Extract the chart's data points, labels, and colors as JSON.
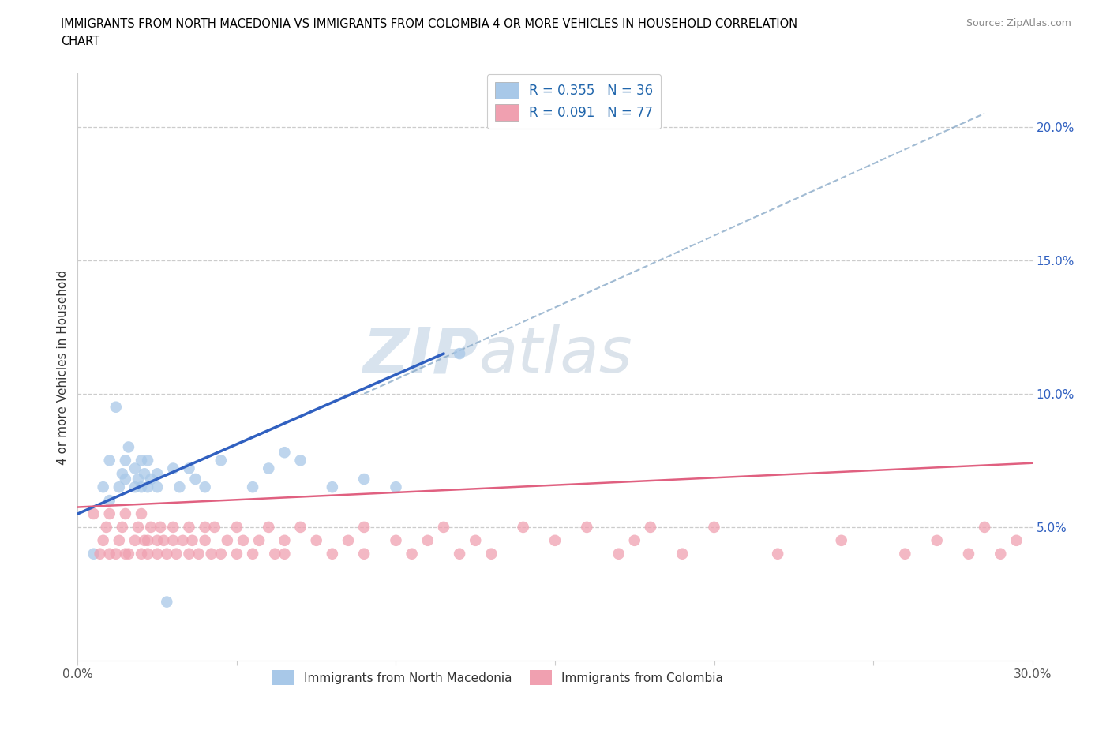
{
  "title_line1": "IMMIGRANTS FROM NORTH MACEDONIA VS IMMIGRANTS FROM COLOMBIA 4 OR MORE VEHICLES IN HOUSEHOLD CORRELATION",
  "title_line2": "CHART",
  "source": "Source: ZipAtlas.com",
  "ylabel": "4 or more Vehicles in Household",
  "xlim": [
    0.0,
    0.3
  ],
  "ylim": [
    0.0,
    0.22
  ],
  "yticks_right": [
    0.05,
    0.1,
    0.15,
    0.2
  ],
  "ytick_right_labels": [
    "5.0%",
    "10.0%",
    "15.0%",
    "20.0%"
  ],
  "blue_color": "#A8C8E8",
  "pink_color": "#F0A0B0",
  "blue_line_color": "#3060C0",
  "pink_line_color": "#E06080",
  "blue_R": 0.355,
  "blue_N": 36,
  "pink_R": 0.091,
  "pink_N": 77,
  "watermark_zip": "ZIP",
  "watermark_atlas": "atlas",
  "legend1": "Immigrants from North Macedonia",
  "legend2": "Immigrants from Colombia",
  "blue_scatter_x": [
    0.005,
    0.008,
    0.01,
    0.01,
    0.012,
    0.013,
    0.014,
    0.015,
    0.015,
    0.016,
    0.018,
    0.018,
    0.019,
    0.02,
    0.02,
    0.021,
    0.022,
    0.022,
    0.023,
    0.025,
    0.025,
    0.028,
    0.03,
    0.032,
    0.035,
    0.037,
    0.04,
    0.045,
    0.055,
    0.06,
    0.065,
    0.07,
    0.08,
    0.09,
    0.1,
    0.12
  ],
  "blue_scatter_y": [
    0.04,
    0.065,
    0.06,
    0.075,
    0.095,
    0.065,
    0.07,
    0.068,
    0.075,
    0.08,
    0.065,
    0.072,
    0.068,
    0.065,
    0.075,
    0.07,
    0.075,
    0.065,
    0.068,
    0.07,
    0.065,
    0.022,
    0.072,
    0.065,
    0.072,
    0.068,
    0.065,
    0.075,
    0.065,
    0.072,
    0.078,
    0.075,
    0.065,
    0.068,
    0.065,
    0.115
  ],
  "pink_scatter_x": [
    0.005,
    0.007,
    0.008,
    0.009,
    0.01,
    0.01,
    0.012,
    0.013,
    0.014,
    0.015,
    0.015,
    0.016,
    0.018,
    0.019,
    0.02,
    0.02,
    0.021,
    0.022,
    0.022,
    0.023,
    0.025,
    0.025,
    0.026,
    0.027,
    0.028,
    0.03,
    0.03,
    0.031,
    0.033,
    0.035,
    0.035,
    0.036,
    0.038,
    0.04,
    0.04,
    0.042,
    0.043,
    0.045,
    0.047,
    0.05,
    0.05,
    0.052,
    0.055,
    0.057,
    0.06,
    0.062,
    0.065,
    0.065,
    0.07,
    0.075,
    0.08,
    0.085,
    0.09,
    0.09,
    0.1,
    0.105,
    0.11,
    0.115,
    0.12,
    0.125,
    0.13,
    0.14,
    0.15,
    0.16,
    0.17,
    0.175,
    0.18,
    0.19,
    0.2,
    0.22,
    0.24,
    0.26,
    0.27,
    0.28,
    0.285,
    0.29,
    0.295
  ],
  "pink_scatter_y": [
    0.055,
    0.04,
    0.045,
    0.05,
    0.04,
    0.055,
    0.04,
    0.045,
    0.05,
    0.04,
    0.055,
    0.04,
    0.045,
    0.05,
    0.055,
    0.04,
    0.045,
    0.04,
    0.045,
    0.05,
    0.04,
    0.045,
    0.05,
    0.045,
    0.04,
    0.05,
    0.045,
    0.04,
    0.045,
    0.04,
    0.05,
    0.045,
    0.04,
    0.05,
    0.045,
    0.04,
    0.05,
    0.04,
    0.045,
    0.05,
    0.04,
    0.045,
    0.04,
    0.045,
    0.05,
    0.04,
    0.045,
    0.04,
    0.05,
    0.045,
    0.04,
    0.045,
    0.05,
    0.04,
    0.045,
    0.04,
    0.045,
    0.05,
    0.04,
    0.045,
    0.04,
    0.05,
    0.045,
    0.05,
    0.04,
    0.045,
    0.05,
    0.04,
    0.05,
    0.04,
    0.045,
    0.04,
    0.045,
    0.04,
    0.05,
    0.04,
    0.045
  ],
  "blue_trend_x": [
    0.0,
    0.115
  ],
  "blue_trend_y": [
    0.055,
    0.115
  ],
  "pink_trend_x": [
    0.0,
    0.3
  ],
  "pink_trend_y": [
    0.0575,
    0.074
  ],
  "dashed_trend_x": [
    0.09,
    0.285
  ],
  "dashed_trend_y": [
    0.1,
    0.205
  ]
}
